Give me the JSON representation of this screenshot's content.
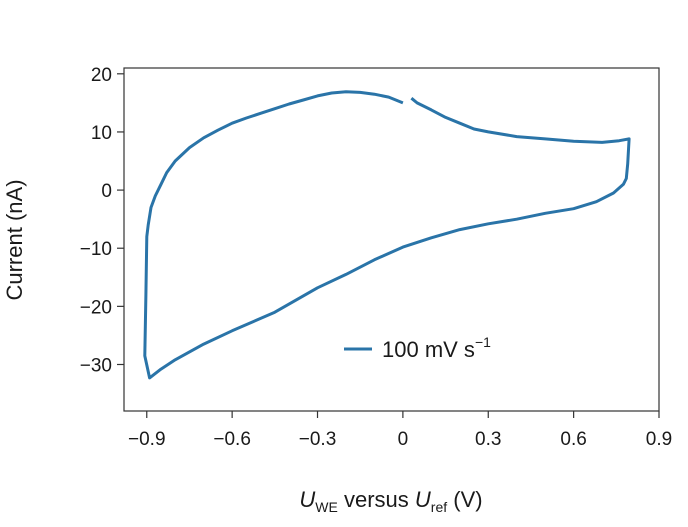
{
  "chart_data": {
    "type": "line",
    "title": "",
    "xlabel": {
      "var": "U",
      "var_sub": "WE",
      "mid": " versus ",
      "var2": "U",
      "var2_sub": "ref",
      "unit": " (V)"
    },
    "ylabel": "Current (nA)",
    "xlim": [
      -0.98,
      0.9
    ],
    "ylim": [
      -38,
      21
    ],
    "x_ticks": [
      -0.9,
      -0.6,
      -0.3,
      0,
      0.3,
      0.6,
      0.9
    ],
    "x_tick_labels": [
      "−0.9",
      "−0.6",
      "−0.3",
      "0",
      "0.3",
      "0.6",
      "0.9"
    ],
    "y_ticks": [
      20,
      10,
      0,
      -10,
      -20,
      -30
    ],
    "y_tick_labels": [
      "20",
      "10",
      "0",
      "−10",
      "−20",
      "−30"
    ],
    "grid": false,
    "legend": {
      "position": "bottom-center",
      "label": "100 mV s",
      "superscript": "−1"
    },
    "colors": {
      "series": "#2a74a8",
      "axis": "#333333"
    },
    "series": [
      {
        "name": "100 mV s−1",
        "segments": [
          [
            [
              0.0,
              15.0
            ],
            [
              -0.05,
              16.0
            ],
            [
              -0.1,
              16.5
            ],
            [
              -0.15,
              16.8
            ],
            [
              -0.2,
              16.9
            ],
            [
              -0.25,
              16.7
            ],
            [
              -0.3,
              16.2
            ],
            [
              -0.35,
              15.5
            ],
            [
              -0.4,
              14.8
            ],
            [
              -0.45,
              14.0
            ],
            [
              -0.5,
              13.2
            ],
            [
              -0.55,
              12.4
            ],
            [
              -0.6,
              11.5
            ],
            [
              -0.65,
              10.3
            ],
            [
              -0.7,
              9.0
            ],
            [
              -0.75,
              7.3
            ],
            [
              -0.8,
              5.0
            ],
            [
              -0.83,
              3.0
            ],
            [
              -0.85,
              1.0
            ],
            [
              -0.87,
              -1.0
            ],
            [
              -0.885,
              -3.0
            ],
            [
              -0.895,
              -6.0
            ],
            [
              -0.9,
              -8.0
            ],
            [
              -0.903,
              -18.0
            ],
            [
              -0.907,
              -28.5
            ],
            [
              -0.89,
              -32.3
            ],
            [
              -0.85,
              -30.8
            ],
            [
              -0.8,
              -29.2
            ],
            [
              -0.7,
              -26.5
            ],
            [
              -0.6,
              -24.2
            ],
            [
              -0.45,
              -21.0
            ],
            [
              -0.3,
              -16.8
            ],
            [
              -0.2,
              -14.5
            ],
            [
              -0.1,
              -12.0
            ],
            [
              0.0,
              -9.8
            ],
            [
              0.1,
              -8.2
            ],
            [
              0.2,
              -6.8
            ],
            [
              0.3,
              -5.8
            ],
            [
              0.4,
              -5.0
            ],
            [
              0.5,
              -4.0
            ],
            [
              0.6,
              -3.2
            ],
            [
              0.68,
              -2.0
            ],
            [
              0.74,
              -0.5
            ],
            [
              0.775,
              1.0
            ],
            [
              0.785,
              2.0
            ],
            [
              0.79,
              4.5
            ],
            [
              0.795,
              8.8
            ],
            [
              0.76,
              8.5
            ],
            [
              0.7,
              8.2
            ],
            [
              0.6,
              8.4
            ],
            [
              0.5,
              8.8
            ],
            [
              0.4,
              9.2
            ],
            [
              0.3,
              10.0
            ],
            [
              0.25,
              10.5
            ],
            [
              0.2,
              11.5
            ],
            [
              0.15,
              12.5
            ],
            [
              0.1,
              13.8
            ],
            [
              0.05,
              15.0
            ],
            [
              0.03,
              15.8
            ]
          ]
        ]
      }
    ]
  }
}
